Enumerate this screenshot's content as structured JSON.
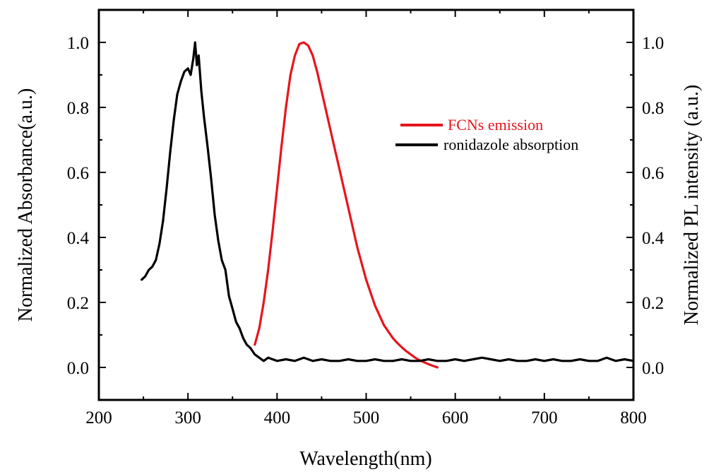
{
  "chart_data": {
    "type": "line",
    "xlabel": "Wavelength(nm)",
    "ylabel_left": "Normalized Absorbance(a.u.)",
    "ylabel_right": "Normalized PL intensity (a.u.)",
    "xlim": [
      200,
      800
    ],
    "ylim": [
      -0.1,
      1.1
    ],
    "x_ticks": [
      "200",
      "300",
      "400",
      "500",
      "600",
      "700",
      "800"
    ],
    "y_ticks_left": [
      "0.0",
      "0.2",
      "0.4",
      "0.6",
      "0.8",
      "1.0"
    ],
    "y_ticks_right": [
      "0.0",
      "0.2",
      "0.4",
      "0.6",
      "0.8",
      "1.0"
    ],
    "grid": false,
    "legend_position": "top-right",
    "series": [
      {
        "name": "FCNs emission",
        "color": "#e8141c",
        "axis": "right",
        "x": [
          375,
          380,
          385,
          390,
          395,
          400,
          405,
          410,
          415,
          420,
          425,
          430,
          435,
          440,
          445,
          450,
          455,
          460,
          465,
          470,
          475,
          480,
          485,
          490,
          495,
          500,
          505,
          510,
          515,
          520,
          525,
          530,
          535,
          540,
          545,
          550,
          555,
          560,
          565,
          570,
          575,
          580
        ],
        "y": [
          0.07,
          0.12,
          0.2,
          0.3,
          0.42,
          0.55,
          0.68,
          0.8,
          0.9,
          0.96,
          0.995,
          1.0,
          0.99,
          0.96,
          0.91,
          0.85,
          0.79,
          0.73,
          0.67,
          0.61,
          0.55,
          0.49,
          0.43,
          0.37,
          0.32,
          0.27,
          0.23,
          0.19,
          0.16,
          0.13,
          0.11,
          0.09,
          0.075,
          0.062,
          0.05,
          0.04,
          0.03,
          0.022,
          0.016,
          0.01,
          0.005,
          0.0
        ]
      },
      {
        "name": "ronidazole absorption",
        "color": "#000000",
        "axis": "left",
        "x": [
          248,
          252,
          256,
          260,
          264,
          268,
          272,
          276,
          280,
          284,
          288,
          292,
          296,
          300,
          303,
          306,
          308,
          310,
          312,
          315,
          318,
          322,
          326,
          330,
          334,
          338,
          342,
          346,
          350,
          354,
          358,
          362,
          366,
          370,
          375,
          380,
          385,
          390,
          395,
          400,
          410,
          420,
          430,
          440,
          450,
          460,
          470,
          480,
          490,
          500,
          510,
          520,
          530,
          540,
          550,
          560,
          570,
          580,
          590,
          600,
          610,
          620,
          630,
          640,
          650,
          660,
          670,
          680,
          690,
          700,
          710,
          720,
          730,
          740,
          750,
          760,
          770,
          780,
          790,
          800
        ],
        "y": [
          0.27,
          0.28,
          0.3,
          0.31,
          0.33,
          0.38,
          0.45,
          0.55,
          0.66,
          0.76,
          0.84,
          0.88,
          0.91,
          0.92,
          0.9,
          0.95,
          1.0,
          0.93,
          0.96,
          0.85,
          0.77,
          0.68,
          0.58,
          0.47,
          0.39,
          0.33,
          0.3,
          0.22,
          0.18,
          0.14,
          0.12,
          0.09,
          0.07,
          0.06,
          0.04,
          0.03,
          0.02,
          0.03,
          0.025,
          0.02,
          0.025,
          0.02,
          0.03,
          0.02,
          0.025,
          0.02,
          0.02,
          0.025,
          0.02,
          0.02,
          0.025,
          0.02,
          0.02,
          0.025,
          0.02,
          0.02,
          0.025,
          0.02,
          0.02,
          0.025,
          0.02,
          0.025,
          0.03,
          0.025,
          0.02,
          0.025,
          0.02,
          0.02,
          0.025,
          0.02,
          0.025,
          0.02,
          0.02,
          0.025,
          0.02,
          0.02,
          0.03,
          0.02,
          0.025,
          0.02
        ]
      }
    ]
  }
}
